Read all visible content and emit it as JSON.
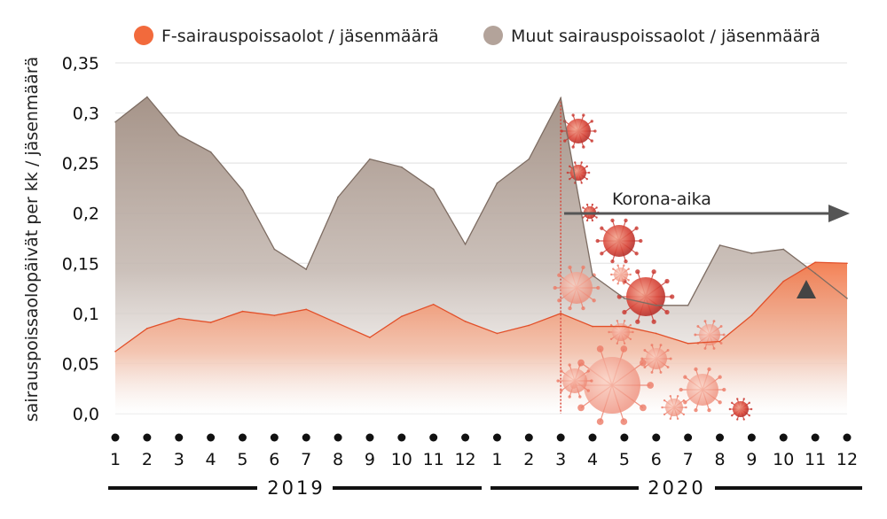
{
  "chart_data": {
    "type": "area",
    "ylabel": "sairauspoissaolopäivät per kk / jäsenmäärä",
    "ylim": [
      0,
      0.35
    ],
    "yticks": [
      "0,0",
      "0,05",
      "0,1",
      "0,15",
      "0,2",
      "0,25",
      "0,3",
      "0,35"
    ],
    "ytick_values": [
      0,
      0.05,
      0.1,
      0.15,
      0.2,
      0.25,
      0.3,
      0.35
    ],
    "categories": [
      "1",
      "2",
      "3",
      "4",
      "5",
      "6",
      "7",
      "8",
      "9",
      "10",
      "11",
      "12",
      "1",
      "2",
      "3",
      "4",
      "5",
      "6",
      "7",
      "8",
      "9",
      "10",
      "11",
      "12"
    ],
    "years": [
      "2019",
      "2020"
    ],
    "grid": true,
    "legend_position": "top",
    "series": [
      {
        "name": "F-sairauspoissaolot / jäsenmäärä",
        "color": "#f26a3c",
        "values": [
          0.062,
          0.085,
          0.095,
          0.091,
          0.102,
          0.098,
          0.104,
          0.09,
          0.076,
          0.097,
          0.109,
          0.092,
          0.08,
          0.088,
          0.1,
          0.087,
          0.087,
          0.08,
          0.07,
          0.072,
          0.098,
          0.132,
          0.151,
          0.15
        ]
      },
      {
        "name": "Muut sairauspoissaolot / jäsenmäärä",
        "color": "#b3a39a",
        "values": [
          0.291,
          0.316,
          0.278,
          0.261,
          0.223,
          0.164,
          0.144,
          0.216,
          0.254,
          0.246,
          0.224,
          0.169,
          0.23,
          0.254,
          0.315,
          0.138,
          0.115,
          0.108,
          0.108,
          0.168,
          0.16,
          0.164,
          0.14,
          0.115
        ]
      }
    ],
    "annotations": [
      {
        "text": "Korona-aika",
        "from_index": 14,
        "to_index": 23
      }
    ]
  }
}
